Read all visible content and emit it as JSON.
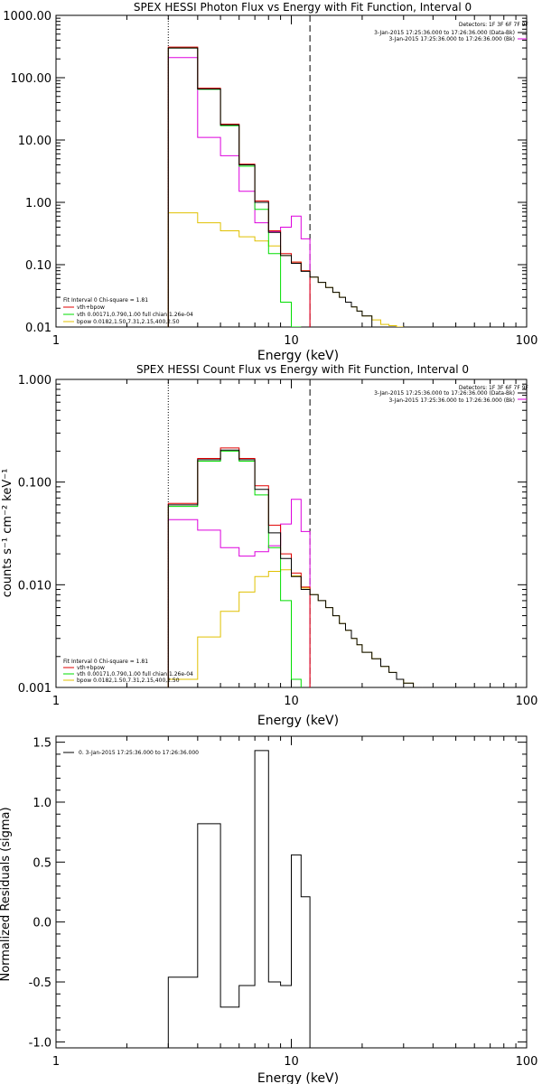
{
  "colors": {
    "total": "#000000",
    "data": "#e00000",
    "vth": "#00dd00",
    "bpow": "#e0c000",
    "bk": "#dd00dd"
  },
  "panels": [
    {
      "title": "SPEX HESSI Photon Flux vs Energy with Fit Function, Interval 0",
      "xlabel": "Energy (keV)",
      "ylabel": "",
      "detectors": "Detectors: 1F 3F 6F 7F 9F",
      "legend_top": [
        "3-Jan-2015 17:25:36.000 to 17:26:36.000 (Data-Bk)",
        "3-Jan-2015 17:25:36.000 to 17:26:36.000 (Bk)"
      ],
      "legend_bottom": [
        "Fit Interval 0   Chi-square = 1.81",
        "vth+bpow",
        "vth 0.00171,0.790,1.00  full chian 1.26e-04",
        "bpow 0.0182,1.50,7.31,2.15,400,2.50"
      ]
    },
    {
      "title": "SPEX HESSI Count Flux vs Energy with Fit Function, Interval 0",
      "xlabel": "Energy (keV)",
      "ylabel": "counts s⁻¹ cm⁻² keV⁻¹",
      "detectors": "Detectors: 1F 3F 6F 7F 9F",
      "legend_top": [
        "3-Jan-2015 17:25:36.000 to 17:26:36.000 (Data-Bk)",
        "3-Jan-2015 17:25:36.000 to 17:26:36.000 (Bk)"
      ],
      "legend_bottom": [
        "Fit Interval 0   Chi-square = 1.81",
        "vth+bpow",
        "vth 0.00171,0.790,1.00  full chian 1.26e-04",
        "bpow 0.0182,1.50,7.31,2.15,400,2.50"
      ]
    },
    {
      "title": "",
      "xlabel": "Energy (keV)",
      "ylabel": "Normalized Residuals (sigma)",
      "legend_top": [
        "0.  3-Jan-2015 17:25:36.000 to 17:26:36.000"
      ]
    }
  ],
  "chart_data": [
    {
      "type": "line",
      "style": "histogram",
      "title": "SPEX HESSI Photon Flux vs Energy with Fit Function, Interval 0",
      "xlabel": "Energy (keV)",
      "xscale": "log",
      "yscale": "log",
      "xlim": [
        1,
        100
      ],
      "ylim": [
        0.01,
        1000
      ],
      "xticks": [
        "1",
        "10",
        "100"
      ],
      "yticks": [
        "0.01",
        "0.10",
        "1.00",
        "10.00",
        "100.00",
        "1000.00"
      ],
      "vlines": [
        {
          "x": 3,
          "style": "dotted"
        },
        {
          "x": 12,
          "style": "dashed"
        }
      ],
      "bin_edges": [
        3,
        4,
        5,
        6,
        7,
        8,
        9,
        10,
        11,
        12,
        13,
        14,
        15,
        16,
        17,
        18,
        19,
        20,
        22,
        24,
        26,
        28,
        30
      ],
      "series": [
        {
          "name": "Data-Bk",
          "color_key": "data",
          "values": [
            310,
            68,
            18,
            4.1,
            1.05,
            0.35,
            0.15,
            0.11,
            0.08,
            null,
            null,
            null,
            null,
            null,
            null,
            null,
            null,
            null,
            null,
            null,
            null,
            null
          ]
        },
        {
          "name": "vth+bpow",
          "color_key": "total",
          "values": [
            300,
            66,
            17.5,
            4.0,
            1.0,
            0.33,
            0.14,
            0.105,
            0.078,
            0.063,
            0.052,
            0.043,
            0.036,
            0.03,
            0.025,
            0.021,
            0.018,
            0.015,
            null,
            null,
            null,
            null
          ]
        },
        {
          "name": "vth",
          "color_key": "vth",
          "values": [
            300,
            65,
            17,
            3.8,
            0.77,
            0.15,
            0.025,
            0.006,
            null,
            null,
            null,
            null,
            null,
            null,
            null,
            null,
            null,
            null,
            null,
            null,
            null,
            null
          ]
        },
        {
          "name": "bpow",
          "color_key": "bpow",
          "values": [
            0.68,
            0.47,
            0.35,
            0.28,
            0.24,
            0.2,
            0.14,
            0.11,
            0.08,
            0.063,
            0.052,
            0.043,
            0.036,
            0.03,
            0.025,
            0.021,
            0.018,
            0.015,
            0.013,
            0.011,
            0.0105,
            0.01
          ]
        },
        {
          "name": "Bk",
          "color_key": "bk",
          "values": [
            210,
            11,
            5.6,
            1.5,
            0.47,
            0.34,
            0.4,
            0.6,
            0.26,
            null,
            null,
            null,
            null,
            null,
            null,
            null,
            null,
            null,
            null,
            null,
            null,
            null
          ]
        }
      ]
    },
    {
      "type": "line",
      "style": "histogram",
      "title": "SPEX HESSI Count Flux vs Energy with Fit Function, Interval 0",
      "xlabel": "Energy (keV)",
      "xscale": "log",
      "yscale": "log",
      "xlim": [
        1,
        100
      ],
      "ylim": [
        0.001,
        1
      ],
      "xticks": [
        "1",
        "10",
        "100"
      ],
      "yticks": [
        "0.001",
        "0.010",
        "0.100",
        "1.000"
      ],
      "vlines": [
        {
          "x": 3,
          "style": "dotted"
        },
        {
          "x": 12,
          "style": "dashed"
        }
      ],
      "bin_edges": [
        3,
        4,
        5,
        6,
        7,
        8,
        9,
        10,
        11,
        12,
        13,
        14,
        15,
        16,
        17,
        18,
        19,
        20,
        22,
        24,
        26,
        28,
        30,
        33,
        36
      ],
      "series": [
        {
          "name": "Data-Bk",
          "color_key": "data",
          "values": [
            0.062,
            0.17,
            0.215,
            0.17,
            0.092,
            0.038,
            0.02,
            0.013,
            0.0095,
            null,
            null,
            null,
            null,
            null,
            null,
            null,
            null,
            null,
            null,
            null,
            null,
            null,
            null,
            null
          ]
        },
        {
          "name": "vth+bpow",
          "color_key": "total",
          "values": [
            0.06,
            0.165,
            0.205,
            0.165,
            0.085,
            0.032,
            0.018,
            0.012,
            0.009,
            0.008,
            0.007,
            0.006,
            0.005,
            0.0042,
            0.0036,
            0.003,
            0.0026,
            0.0022,
            0.0019,
            0.0016,
            0.0014,
            0.0012,
            0.0011,
            0.001
          ]
        },
        {
          "name": "vth",
          "color_key": "vth",
          "values": [
            0.058,
            0.16,
            0.2,
            0.16,
            0.075,
            0.023,
            0.007,
            0.0012,
            null,
            null,
            null,
            null,
            null,
            null,
            null,
            null,
            null,
            null,
            null,
            null,
            null,
            null,
            null,
            null
          ]
        },
        {
          "name": "bpow",
          "color_key": "bpow",
          "values": [
            0.0012,
            0.0031,
            0.0055,
            0.0085,
            0.012,
            0.0135,
            0.014,
            0.0122,
            0.0093,
            0.008,
            0.007,
            0.006,
            0.005,
            0.0042,
            0.0036,
            0.003,
            0.0026,
            0.0022,
            0.0019,
            0.0016,
            0.0014,
            0.0012,
            0.0011,
            0.001
          ]
        },
        {
          "name": "Bk",
          "color_key": "bk",
          "values": [
            0.043,
            0.034,
            0.023,
            0.019,
            0.021,
            0.024,
            0.039,
            0.068,
            0.033,
            null,
            null,
            null,
            null,
            null,
            null,
            null,
            null,
            null,
            null,
            null,
            null,
            null,
            null,
            null
          ]
        }
      ]
    },
    {
      "type": "line",
      "style": "histogram",
      "xlabel": "Energy (keV)",
      "ylabel": "Normalized Residuals (sigma)",
      "xscale": "log",
      "yscale": "linear",
      "xlim": [
        1,
        100
      ],
      "ylim": [
        -1.05,
        1.55
      ],
      "xticks": [
        "1",
        "10",
        "100"
      ],
      "yticks": [
        "-1.0",
        "-0.5",
        "0.0",
        "0.5",
        "1.0",
        "1.5"
      ],
      "bin_edges": [
        3,
        4,
        5,
        6,
        7,
        8,
        9,
        10,
        11,
        12
      ],
      "series": [
        {
          "name": "0.",
          "color_key": "total",
          "values": [
            -0.46,
            0.82,
            -0.71,
            -0.53,
            1.43,
            -0.5,
            -0.53,
            0.56,
            0.21
          ]
        }
      ]
    }
  ]
}
